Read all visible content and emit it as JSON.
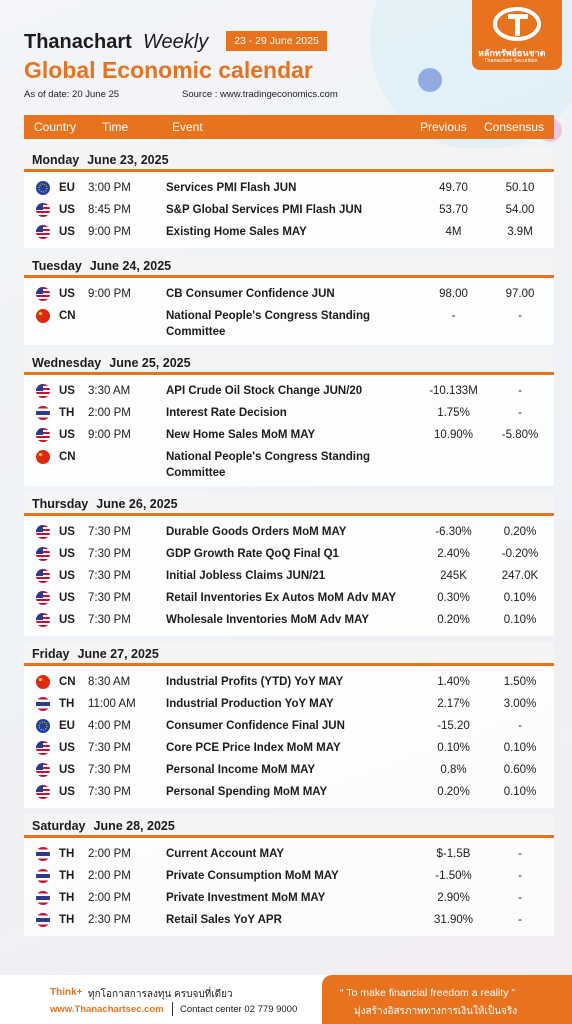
{
  "header": {
    "brand": "Thanachart",
    "weekly": "Weekly",
    "date_range": "23 - 29 June 2025",
    "title": "Global Economic calendar",
    "as_of": "As of date: 20 June 25",
    "source": "Source : www.tradingeconomics.com",
    "logo_th": "หลักทรัพย์ธนชาต",
    "logo_en": "Thanachart Securities"
  },
  "table": {
    "columns": [
      "Country",
      "Time",
      "Event",
      "Previous",
      "Consensus"
    ],
    "days": [
      {
        "day": "Monday",
        "date": "June 23, 2025",
        "rows": [
          [
            "EU",
            "3:00 PM",
            "Services PMI Flash JUN",
            "49.70",
            "50.10"
          ],
          [
            "US",
            "8:45 PM",
            "S&P Global Services PMI Flash JUN",
            "53.70",
            "54.00"
          ],
          [
            "US",
            "9:00 PM",
            "Existing Home Sales MAY",
            "4M",
            "3.9M"
          ]
        ]
      },
      {
        "day": "Tuesday",
        "date": "June 24, 2025",
        "rows": [
          [
            "US",
            "9:00 PM",
            "CB Consumer Confidence JUN",
            "98.00",
            "97.00"
          ],
          [
            "CN",
            "",
            "National People's Congress Standing Committee",
            "-",
            "-"
          ]
        ]
      },
      {
        "day": "Wednesday",
        "date": "June 25, 2025",
        "rows": [
          [
            "US",
            "3:30 AM",
            "API Crude Oil Stock Change JUN/20",
            "-10.133M",
            "-"
          ],
          [
            "TH",
            "2:00 PM",
            "Interest Rate Decision",
            "1.75%",
            "-"
          ],
          [
            "US",
            "9:00 PM",
            "New Home Sales MoM MAY",
            "10.90%",
            "-5.80%"
          ],
          [
            "CN",
            "",
            "National People's Congress Standing Committee",
            "",
            ""
          ]
        ]
      },
      {
        "day": "Thursday",
        "date": "June 26, 2025",
        "rows": [
          [
            "US",
            "7:30 PM",
            "Durable Goods Orders MoM MAY",
            "-6.30%",
            "0.20%"
          ],
          [
            "US",
            "7:30 PM",
            "GDP Growth Rate QoQ Final Q1",
            "2.40%",
            "-0.20%"
          ],
          [
            "US",
            "7:30 PM",
            "Initial Jobless Claims JUN/21",
            "245K",
            "247.0K"
          ],
          [
            "US",
            "7:30 PM",
            "Retail Inventories Ex Autos MoM Adv MAY",
            "0.30%",
            "0.10%"
          ],
          [
            "US",
            "7:30 PM",
            "Wholesale Inventories MoM Adv MAY",
            "0.20%",
            "0.10%"
          ]
        ]
      },
      {
        "day": "Friday",
        "date": "June 27, 2025",
        "rows": [
          [
            "CN",
            "8:30 AM",
            "Industrial Profits (YTD) YoY MAY",
            "1.40%",
            "1.50%"
          ],
          [
            "TH",
            "11:00 AM",
            "Industrial Production YoY MAY",
            "2.17%",
            "3.00%"
          ],
          [
            "EU",
            "4:00 PM",
            "Consumer Confidence Final JUN",
            "-15.20",
            "-"
          ],
          [
            "US",
            "7:30 PM",
            "Core PCE Price Index MoM MAY",
            "0.10%",
            "0.10%"
          ],
          [
            "US",
            "7:30 PM",
            "Personal Income MoM MAY",
            "0.8%",
            "0.60%"
          ],
          [
            "US",
            "7:30 PM",
            "Personal Spending MoM MAY",
            "0.20%",
            "0.10%"
          ]
        ]
      },
      {
        "day": "Saturday",
        "date": "June 28, 2025",
        "rows": [
          [
            "TH",
            "2:00 PM",
            "Current Account MAY",
            "$-1.5B",
            "-"
          ],
          [
            "TH",
            "2:00 PM",
            "Private Consumption MoM MAY",
            "-1.50%",
            "-"
          ],
          [
            "TH",
            "2:00 PM",
            "Private Investment MoM MAY",
            "2.90%",
            "-"
          ],
          [
            "TH",
            "2:30 PM",
            "Retail Sales YoY APR",
            "31.90%",
            "-"
          ]
        ]
      }
    ]
  },
  "footer": {
    "think": "Think+",
    "tagline": "ทุกโอกาสการลงทุน ครบจบที่เดียว",
    "website": "www.Thanachartsec.com",
    "contact": "Contact center 02 779 9000",
    "motto_en": "“ To make financial freedom a reality ”",
    "motto_th": "มุ่งสร้างอิสรภาพทางการเงินให้เป็นจริง"
  }
}
